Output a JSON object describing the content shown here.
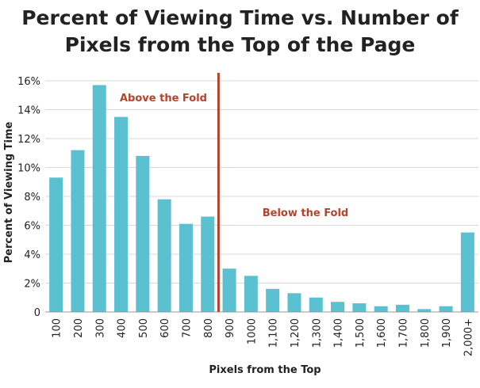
{
  "chart_data": {
    "type": "bar",
    "title_line1": "Percent of Viewing Time vs. Number of",
    "title_line2": "Pixels from the Top of the Page",
    "xlabel": "Pixels from the Top",
    "ylabel": "Percent of Viewing Time",
    "categories": [
      "100",
      "200",
      "300",
      "400",
      "500",
      "600",
      "700",
      "800",
      "900",
      "1000",
      "1,100",
      "1,200",
      "1,300",
      "1,400",
      "1,500",
      "1,600",
      "1,700",
      "1,800",
      "1,900",
      "2,000+"
    ],
    "values": [
      9.3,
      11.2,
      15.7,
      13.5,
      10.8,
      7.8,
      6.1,
      6.6,
      3.0,
      2.5,
      1.6,
      1.3,
      1.0,
      0.7,
      0.6,
      0.4,
      0.5,
      0.2,
      0.4,
      5.5
    ],
    "ylim": [
      0,
      16
    ],
    "yticks": [
      0,
      2,
      4,
      6,
      8,
      10,
      12,
      14,
      16
    ],
    "ytick_labels": [
      "0",
      "2%",
      "4%",
      "6%",
      "8%",
      "10%",
      "12%",
      "14%",
      "16%"
    ],
    "grid": true,
    "annotations": {
      "above": "Above the Fold",
      "below": "Below the Fold"
    },
    "fold_after_category": "800",
    "colors": {
      "bar": "#5bc0cf",
      "fold_line": "#b5432b",
      "annotation": "#b5432b",
      "grid": "#d9d9d9"
    }
  }
}
